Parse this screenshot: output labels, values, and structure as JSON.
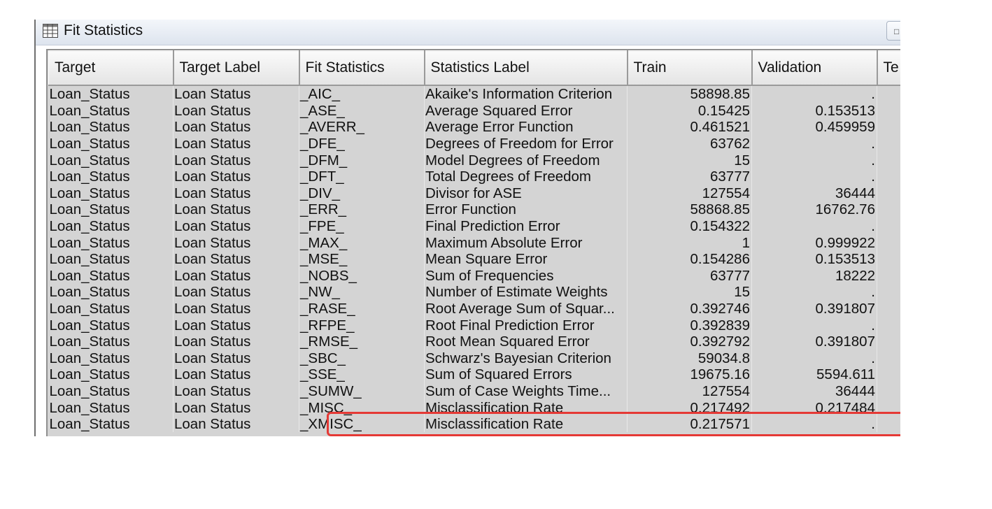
{
  "window": {
    "title": "Fit Statistics",
    "icon": "table-icon"
  },
  "columns": [
    "Target",
    "Target Label",
    "Fit Statistics",
    "Statistics Label",
    "Train",
    "Validation",
    "Te"
  ],
  "rows": [
    [
      "Loan_Status",
      "Loan Status",
      "_AIC_",
      "Akaike's Information Criterion",
      "58898.85",
      "."
    ],
    [
      "Loan_Status",
      "Loan Status",
      "_ASE_",
      "Average Squared Error",
      "0.15425",
      "0.153513"
    ],
    [
      "Loan_Status",
      "Loan Status",
      "_AVERR_",
      "Average Error Function",
      "0.461521",
      "0.459959"
    ],
    [
      "Loan_Status",
      "Loan Status",
      "_DFE_",
      "Degrees of Freedom for Error",
      "63762",
      "."
    ],
    [
      "Loan_Status",
      "Loan Status",
      "_DFM_",
      "Model Degrees of Freedom",
      "15",
      "."
    ],
    [
      "Loan_Status",
      "Loan Status",
      "_DFT_",
      "Total Degrees of Freedom",
      "63777",
      "."
    ],
    [
      "Loan_Status",
      "Loan Status",
      "_DIV_",
      "Divisor for ASE",
      "127554",
      "36444"
    ],
    [
      "Loan_Status",
      "Loan Status",
      "_ERR_",
      "Error Function",
      "58868.85",
      "16762.76"
    ],
    [
      "Loan_Status",
      "Loan Status",
      "_FPE_",
      "Final Prediction Error",
      "0.154322",
      "."
    ],
    [
      "Loan_Status",
      "Loan Status",
      "_MAX_",
      "Maximum Absolute Error",
      "1",
      "0.999922"
    ],
    [
      "Loan_Status",
      "Loan Status",
      "_MSE_",
      "Mean Square Error",
      "0.154286",
      "0.153513"
    ],
    [
      "Loan_Status",
      "Loan Status",
      "_NOBS_",
      "Sum of Frequencies",
      "63777",
      "18222"
    ],
    [
      "Loan_Status",
      "Loan Status",
      "_NW_",
      "Number of Estimate Weights",
      "15",
      "."
    ],
    [
      "Loan_Status",
      "Loan Status",
      "_RASE_",
      "Root Average Sum of Squar...",
      "0.392746",
      "0.391807"
    ],
    [
      "Loan_Status",
      "Loan Status",
      "_RFPE_",
      "Root Final Prediction Error",
      "0.392839",
      "."
    ],
    [
      "Loan_Status",
      "Loan Status",
      "_RMSE_",
      "Root Mean Squared Error",
      "0.392792",
      "0.391807"
    ],
    [
      "Loan_Status",
      "Loan Status",
      "_SBC_",
      "Schwarz's Bayesian Criterion",
      "59034.8",
      "."
    ],
    [
      "Loan_Status",
      "Loan Status",
      "_SSE_",
      "Sum of Squared Errors",
      "19675.16",
      "5594.611"
    ],
    [
      "Loan_Status",
      "Loan Status",
      "_SUMW_",
      "Sum of Case Weights Time...",
      "127554",
      "36444"
    ],
    [
      "Loan_Status",
      "Loan Status",
      "_MISC_",
      "Misclassification Rate",
      "0.217492",
      "0.217484"
    ],
    [
      "Loan_Status",
      "Loan Status",
      "_XMISC_",
      "Misclassification Rate",
      "0.217571",
      "."
    ]
  ],
  "highlight_color": "#e53935",
  "highlighted_row": "_MISC_"
}
